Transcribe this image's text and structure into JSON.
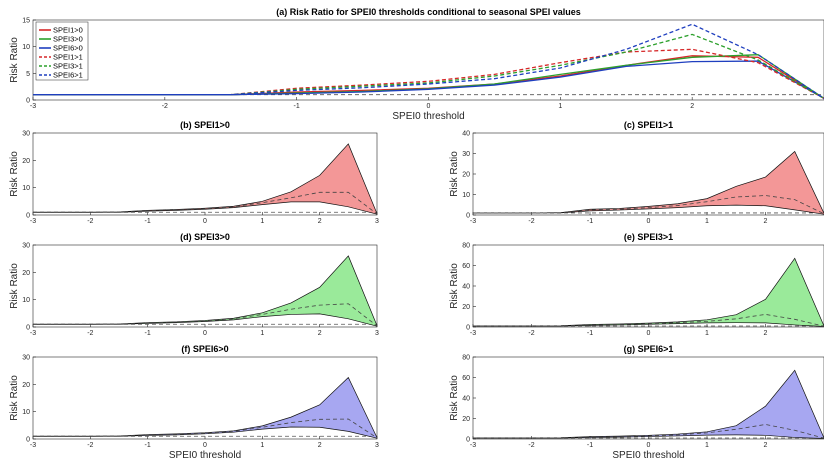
{
  "chart_data": [
    {
      "id": "a",
      "type": "line",
      "title": "(a) Risk Ratio for SPEI0 thresholds conditional to seasonal SPEI values",
      "xlabel": "SPEI0 threshold",
      "ylabel": "Risk Ratio",
      "xlim": [
        -3,
        3
      ],
      "ylim": [
        0,
        15
      ],
      "xticks": [
        -3,
        -2,
        -1,
        0,
        1,
        2
      ],
      "yticks": [
        0,
        5,
        10,
        15
      ],
      "x": [
        -3,
        -2.5,
        -2,
        -1.5,
        -1,
        -0.5,
        0,
        0.5,
        1,
        1.5,
        2,
        2.5,
        3
      ],
      "series": [
        {
          "name": "SPEI1>0",
          "color": "#d62728",
          "dash": false,
          "values": [
            1,
            1,
            1,
            1,
            1.5,
            1.8,
            2.2,
            3,
            4.5,
            6.5,
            8.3,
            8.0,
            0.3
          ]
        },
        {
          "name": "SPEI3>0",
          "color": "#2ca02c",
          "dash": false,
          "values": [
            1,
            1,
            1,
            1,
            1.3,
            1.6,
            2.1,
            3,
            4.8,
            6.5,
            8.0,
            8.5,
            0.3
          ]
        },
        {
          "name": "SPEI6>0",
          "color": "#1f3fbf",
          "dash": false,
          "values": [
            1,
            1,
            1,
            1,
            1.2,
            1.5,
            2.0,
            2.8,
            4.3,
            6.3,
            7.2,
            7.3,
            0.3
          ]
        },
        {
          "name": "SPEI1>1",
          "color": "#d62728",
          "dash": true,
          "values": [
            1,
            1,
            1,
            1,
            2.2,
            2.8,
            3.5,
            4.8,
            7.0,
            9.0,
            9.5,
            7.0,
            0.3
          ]
        },
        {
          "name": "SPEI3>1",
          "color": "#2ca02c",
          "dash": true,
          "values": [
            1,
            1,
            1,
            1,
            2.0,
            2.6,
            3.2,
            4.5,
            6.5,
            9.0,
            12.3,
            7.5,
            0.3
          ]
        },
        {
          "name": "SPEI6>1",
          "color": "#1f3fbf",
          "dash": true,
          "values": [
            1,
            1,
            1,
            1,
            1.8,
            2.3,
            3.0,
            4.0,
            6.0,
            9.5,
            14.2,
            8.5,
            0.3
          ]
        }
      ],
      "reference_line": 1
    },
    {
      "id": "b",
      "type": "area",
      "title": "(b) SPEI1>0",
      "xlabel": "",
      "ylabel": "Risk Ratio",
      "xlim": [
        -3,
        3
      ],
      "ylim": [
        0,
        30
      ],
      "xticks": [
        -3,
        -2,
        -1,
        0,
        1,
        2,
        3
      ],
      "yticks": [
        0,
        10,
        20,
        30
      ],
      "color": "#f28c8c",
      "x": [
        -3,
        -2.5,
        -2,
        -1.5,
        -1,
        -0.5,
        0,
        0.5,
        1,
        1.5,
        2,
        2.5,
        3
      ],
      "upper": [
        1,
        1,
        1,
        1.1,
        1.7,
        2.0,
        2.5,
        3.2,
        5.0,
        8.5,
        14.5,
        26.0,
        0.5
      ],
      "median": [
        1,
        1,
        1,
        1.1,
        1.6,
        1.9,
        2.3,
        3.0,
        4.5,
        6.3,
        8.3,
        8.3,
        0.4
      ],
      "lower": [
        1,
        1,
        1,
        1.0,
        1.4,
        1.7,
        2.1,
        2.7,
        3.8,
        4.8,
        4.8,
        3.0,
        0.3
      ],
      "reference_line": 1
    },
    {
      "id": "c",
      "type": "area",
      "title": "(c) SPEI1>1",
      "xlabel": "",
      "ylabel": "Risk Ratio",
      "xlim": [
        -3,
        3
      ],
      "ylim": [
        0,
        40
      ],
      "xticks": [
        -3,
        -2,
        -1,
        0,
        1,
        2
      ],
      "yticks": [
        0,
        10,
        20,
        30,
        40
      ],
      "color": "#f28c8c",
      "x": [
        -3,
        -2.5,
        -2,
        -1.5,
        -1,
        -0.5,
        0,
        0.5,
        1,
        1.5,
        2,
        2.5,
        3
      ],
      "upper": [
        1,
        1,
        1,
        1.2,
        2.8,
        3.2,
        4.2,
        5.5,
        8.0,
        14.0,
        18.5,
        31.0,
        0.8
      ],
      "median": [
        1,
        1,
        1,
        1.1,
        2.5,
        2.8,
        3.6,
        4.6,
        6.5,
        8.8,
        9.5,
        7.5,
        0.6
      ],
      "lower": [
        1,
        1,
        1,
        1.0,
        2.0,
        2.4,
        3.0,
        3.6,
        4.5,
        4.8,
        4.5,
        2.5,
        0.4
      ],
      "reference_line": 1
    },
    {
      "id": "d",
      "type": "area",
      "title": "(d) SPEI3>0",
      "xlabel": "",
      "ylabel": "Risk Ratio",
      "xlim": [
        -3,
        3
      ],
      "ylim": [
        0,
        30
      ],
      "xticks": [
        -3,
        -2,
        -1,
        0,
        1,
        2,
        3
      ],
      "yticks": [
        0,
        10,
        20,
        30
      ],
      "color": "#8fe88f",
      "x": [
        -3,
        -2.5,
        -2,
        -1.5,
        -1,
        -0.5,
        0,
        0.5,
        1,
        1.5,
        2,
        2.5,
        3
      ],
      "upper": [
        1,
        1,
        1,
        1.1,
        1.6,
        1.9,
        2.4,
        3.2,
        5.2,
        8.8,
        14.5,
        26.0,
        0.5
      ],
      "median": [
        1,
        1,
        1,
        1.1,
        1.5,
        1.8,
        2.2,
        3.0,
        4.6,
        6.5,
        8.0,
        8.5,
        0.4
      ],
      "lower": [
        1,
        1,
        1,
        1.0,
        1.3,
        1.6,
        2.0,
        2.6,
        3.8,
        4.6,
        4.8,
        3.0,
        0.3
      ],
      "reference_line": 1
    },
    {
      "id": "e",
      "type": "area",
      "title": "(e) SPEI3>1",
      "xlabel": "",
      "ylabel": "Risk Ratio",
      "xlim": [
        -3,
        3
      ],
      "ylim": [
        0,
        80
      ],
      "xticks": [
        -3,
        -2,
        -1,
        0,
        1,
        2
      ],
      "yticks": [
        0,
        20,
        40,
        60,
        80
      ],
      "color": "#8fe88f",
      "x": [
        -3,
        -2.5,
        -2,
        -1.5,
        -1,
        -0.5,
        0,
        0.5,
        1,
        1.5,
        2,
        2.5,
        3
      ],
      "upper": [
        1,
        1,
        1,
        1.2,
        2.5,
        3.0,
        3.8,
        5.0,
        7.0,
        12.0,
        27.0,
        67.0,
        1.0
      ],
      "median": [
        1,
        1,
        1,
        1.1,
        2.0,
        2.5,
        3.2,
        4.2,
        5.5,
        8.0,
        12.3,
        7.5,
        0.8
      ],
      "lower": [
        1,
        1,
        1,
        1.0,
        1.6,
        2.0,
        2.6,
        3.3,
        4.0,
        4.2,
        4.0,
        2.0,
        0.5
      ],
      "reference_line": 1
    },
    {
      "id": "f",
      "type": "area",
      "title": "(f) SPEI6>0",
      "xlabel": "SPEI0 threshold",
      "ylabel": "Risk Ratio",
      "xlim": [
        -3,
        3
      ],
      "ylim": [
        0,
        30
      ],
      "xticks": [
        -3,
        -2,
        -1,
        0,
        1,
        2,
        3
      ],
      "yticks": [
        0,
        10,
        20,
        30
      ],
      "color": "#9d9df0",
      "x": [
        -3,
        -2.5,
        -2,
        -1.5,
        -1,
        -0.5,
        0,
        0.5,
        1,
        1.5,
        2,
        2.5,
        3
      ],
      "upper": [
        1,
        1,
        1,
        1.1,
        1.6,
        1.9,
        2.3,
        3.0,
        4.8,
        8.0,
        12.5,
        22.5,
        0.5
      ],
      "median": [
        1,
        1,
        1,
        1.1,
        1.5,
        1.7,
        2.1,
        2.8,
        4.3,
        6.0,
        7.2,
        7.3,
        0.4
      ],
      "lower": [
        1,
        1,
        1,
        1.0,
        1.3,
        1.5,
        1.9,
        2.5,
        3.6,
        4.4,
        4.3,
        2.8,
        0.3
      ],
      "reference_line": 1
    },
    {
      "id": "g",
      "type": "area",
      "title": "(g) SPEI6>1",
      "xlabel": "SPEI0 threshold",
      "ylabel": "Risk Ratio",
      "xlim": [
        -3,
        3
      ],
      "ylim": [
        0,
        80
      ],
      "xticks": [
        -3,
        -2,
        -1,
        0,
        1,
        2
      ],
      "yticks": [
        0,
        20,
        40,
        60,
        80
      ],
      "color": "#9d9df0",
      "x": [
        -3,
        -2.5,
        -2,
        -1.5,
        -1,
        -0.5,
        0,
        0.5,
        1,
        1.5,
        2,
        2.5,
        3
      ],
      "upper": [
        1,
        1,
        1,
        1.2,
        2.3,
        2.8,
        3.6,
        4.8,
        7.0,
        13.0,
        32.0,
        67.0,
        1.0
      ],
      "median": [
        1,
        1,
        1,
        1.1,
        1.8,
        2.3,
        3.0,
        4.0,
        6.0,
        9.5,
        14.2,
        8.5,
        0.8
      ],
      "lower": [
        1,
        1,
        1,
        1.0,
        1.4,
        1.8,
        2.4,
        3.0,
        3.8,
        4.0,
        3.6,
        1.5,
        0.5
      ],
      "reference_line": 1
    }
  ]
}
